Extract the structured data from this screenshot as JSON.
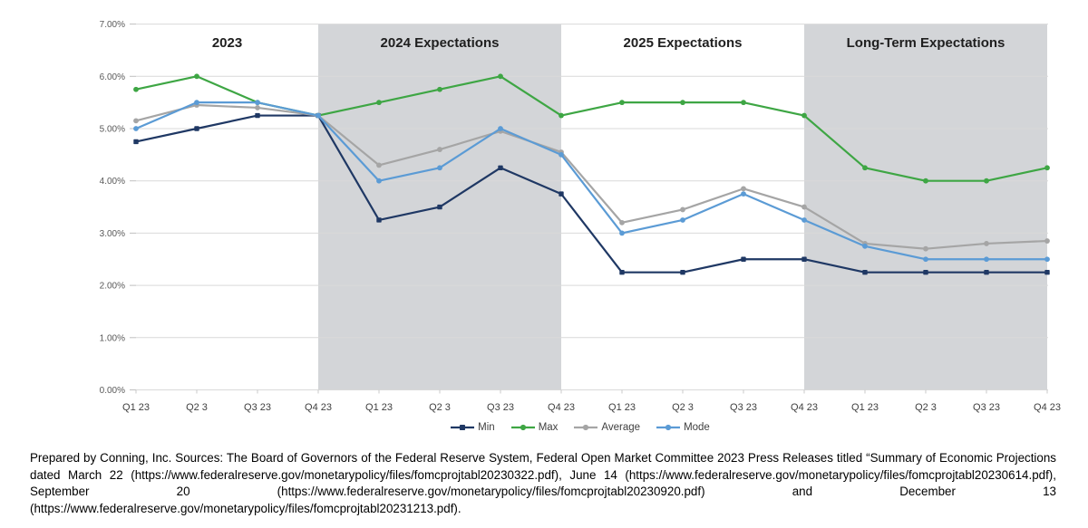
{
  "chart_data": {
    "type": "line",
    "title": "",
    "sections": [
      {
        "label": "2023",
        "shaded": false
      },
      {
        "label": "2024 Expectations",
        "shaded": true
      },
      {
        "label": "2025 Expectations",
        "shaded": false
      },
      {
        "label": "Long-Term Expectations",
        "shaded": true
      }
    ],
    "x_labels": [
      "Q1 23",
      "Q2 3",
      "Q3 23",
      "Q4 23",
      "Q1 23",
      "Q2 3",
      "Q3 23",
      "Q4 23",
      "Q1 23",
      "Q2 3",
      "Q3 23",
      "Q4 23",
      "Q1 23",
      "Q2 3",
      "Q3 23",
      "Q4 23"
    ],
    "y_axis": {
      "min": 0,
      "max": 7,
      "step": 1,
      "tick_labels": [
        "0.00%",
        "1.00%",
        "2.00%",
        "3.00%",
        "4.00%",
        "5.00%",
        "6.00%",
        "7.00%"
      ]
    },
    "series": [
      {
        "name": "Min",
        "color": "#1F3864",
        "marker": "square",
        "values": [
          4.75,
          5.0,
          5.25,
          5.25,
          3.25,
          3.5,
          4.25,
          3.75,
          2.25,
          2.25,
          2.5,
          2.5,
          2.25,
          2.25,
          2.25,
          2.25
        ]
      },
      {
        "name": "Max",
        "color": "#3EA644",
        "marker": "circle",
        "values": [
          5.75,
          6.0,
          5.5,
          5.25,
          5.5,
          5.75,
          6.0,
          5.25,
          5.5,
          5.5,
          5.5,
          5.25,
          4.25,
          4.0,
          4.0,
          4.25
        ]
      },
      {
        "name": "Average",
        "color": "#A5A5A5",
        "marker": "circle",
        "values": [
          5.15,
          5.45,
          5.4,
          5.25,
          4.3,
          4.6,
          4.95,
          4.55,
          3.2,
          3.45,
          3.85,
          3.5,
          2.8,
          2.7,
          2.8,
          2.85
        ]
      },
      {
        "name": "Mode",
        "color": "#5B9BD5",
        "marker": "circle",
        "values": [
          5.0,
          5.5,
          5.5,
          5.25,
          4.0,
          4.25,
          5.0,
          4.5,
          3.0,
          3.25,
          3.75,
          3.25,
          2.75,
          2.5,
          2.5,
          2.5
        ]
      }
    ],
    "legend_position": "bottom",
    "grid": true,
    "band_color": "#D3D5D8",
    "ylim": [
      0,
      7
    ]
  },
  "footer": {
    "lines": [
      "Prepared by Conning, Inc. Sources: The Board of Governors of the Federal Reserve System, Federal Open Market Committee 2023 Press Releases titled “Summary of Economic Projections",
      "dated March 22 (https://www.federalreserve.gov/monetarypolicy/files/fomcprojtabl20230322.pdf), June 14 (https://www.federalreserve.gov/monetarypolicy/files/fomcprojtabl20230614.pdf),",
      "September 20 (https://www.federalreserve.gov/monetarypolicy/files/fomcprojtabl20230920.pdf) and December 13",
      "(https://www.federalreserve.gov/monetarypolicy/files/fomcprojtabl20231213.pdf)."
    ]
  }
}
